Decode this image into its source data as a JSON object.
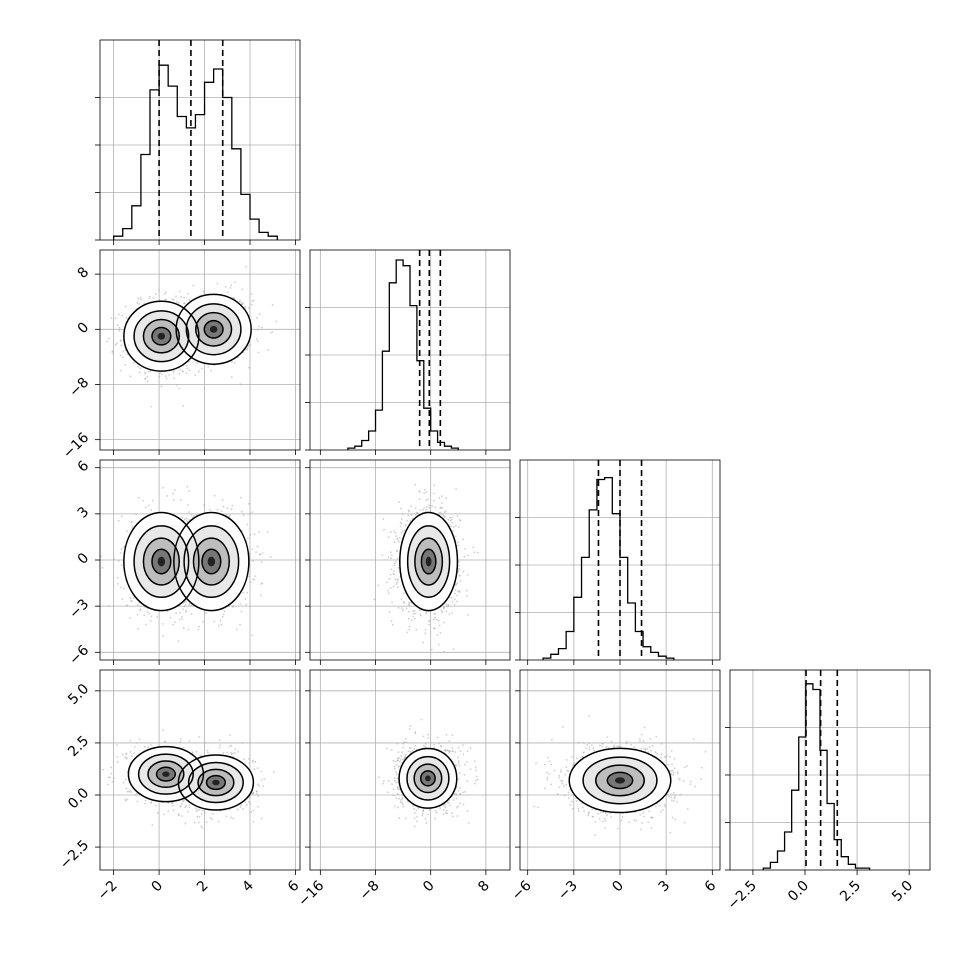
{
  "chart_data": {
    "type": "corner",
    "n_params": 4,
    "grid": true,
    "ticks": [
      {
        "values": [
          -2,
          0,
          2,
          4,
          6
        ],
        "labels": [
          "−2",
          "0",
          "2",
          "4",
          "6"
        ]
      },
      {
        "values": [
          -16,
          -8,
          0,
          8
        ],
        "labels": [
          "−16",
          "−8",
          "0",
          "8"
        ]
      },
      {
        "values": [
          -6,
          -3,
          0,
          3,
          6
        ],
        "labels": [
          "−6",
          "−3",
          "0",
          "3",
          "6"
        ]
      },
      {
        "values": [
          -2.5,
          0,
          2.5,
          5
        ],
        "labels": [
          "−2.5",
          "0.0",
          "2.5",
          "5.0"
        ]
      }
    ],
    "ranges": [
      [
        -2.6,
        6.2
      ],
      [
        -17.5,
        11.5
      ],
      [
        -6.5,
        6.5
      ],
      [
        -3.6,
        6.0
      ]
    ],
    "quantiles": [
      [
        0.0,
        1.4,
        2.8
      ],
      [
        -1.6,
        -0.2,
        1.4
      ],
      [
        -1.4,
        0.0,
        1.4
      ],
      [
        0.05,
        0.75,
        1.55
      ]
    ],
    "histograms": [
      {
        "bin_edges_start": -2.0,
        "bin_width": 0.4,
        "counts": [
          0.02,
          0.06,
          0.18,
          0.45,
          0.79,
          0.92,
          0.81,
          0.65,
          0.59,
          0.66,
          0.83,
          0.9,
          0.75,
          0.48,
          0.24,
          0.11,
          0.04,
          0.02
        ]
      },
      {
        "bin_edges_start": -12.0,
        "bin_width": 1.0,
        "counts": [
          0.01,
          0.02,
          0.05,
          0.1,
          0.21,
          0.52,
          0.88,
          1.0,
          0.97,
          0.76,
          0.47,
          0.22,
          0.1,
          0.04,
          0.02,
          0.01
        ]
      },
      {
        "bin_edges_start": -5.0,
        "bin_width": 0.5,
        "counts": [
          0.01,
          0.03,
          0.06,
          0.15,
          0.33,
          0.54,
          0.79,
          0.95,
          0.96,
          0.77,
          0.54,
          0.3,
          0.15,
          0.07,
          0.04,
          0.02,
          0.01
        ]
      },
      {
        "bin_edges_start": -2.0,
        "bin_width": 0.34,
        "counts": [
          0.01,
          0.04,
          0.1,
          0.2,
          0.42,
          0.7,
          0.98,
          0.95,
          0.63,
          0.35,
          0.16,
          0.07,
          0.03,
          0.01,
          0.01
        ]
      }
    ],
    "scatter_2d": [
      {
        "x": 1,
        "y": 0,
        "components": [
          {
            "mx": 0.1,
            "my": -1.0,
            "sx": 0.75,
            "sy": 2.3
          },
          {
            "mx": 2.4,
            "my": 0.0,
            "sx": 0.75,
            "sy": 2.3
          }
        ]
      },
      {
        "x": 2,
        "y": 0,
        "components": [
          {
            "mx": 0.1,
            "my": -0.1,
            "sx": 0.75,
            "sy": 1.45
          },
          {
            "mx": 2.3,
            "my": -0.1,
            "sx": 0.75,
            "sy": 1.45
          }
        ]
      },
      {
        "x": 2,
        "y": 1,
        "components": [
          {
            "mx": -0.3,
            "my": -0.1,
            "sx": 1.9,
            "sy": 1.45
          }
        ]
      },
      {
        "x": 3,
        "y": 0,
        "components": [
          {
            "mx": 0.3,
            "my": 1.0,
            "sx": 0.75,
            "sy": 0.6
          },
          {
            "mx": 2.5,
            "my": 0.6,
            "sx": 0.75,
            "sy": 0.6
          }
        ]
      },
      {
        "x": 3,
        "y": 1,
        "components": [
          {
            "mx": -0.4,
            "my": 0.8,
            "sx": 1.9,
            "sy": 0.65
          }
        ]
      },
      {
        "x": 3,
        "y": 2,
        "components": [
          {
            "mx": 0.0,
            "my": 0.7,
            "sx": 1.5,
            "sy": 0.7
          }
        ]
      }
    ]
  }
}
